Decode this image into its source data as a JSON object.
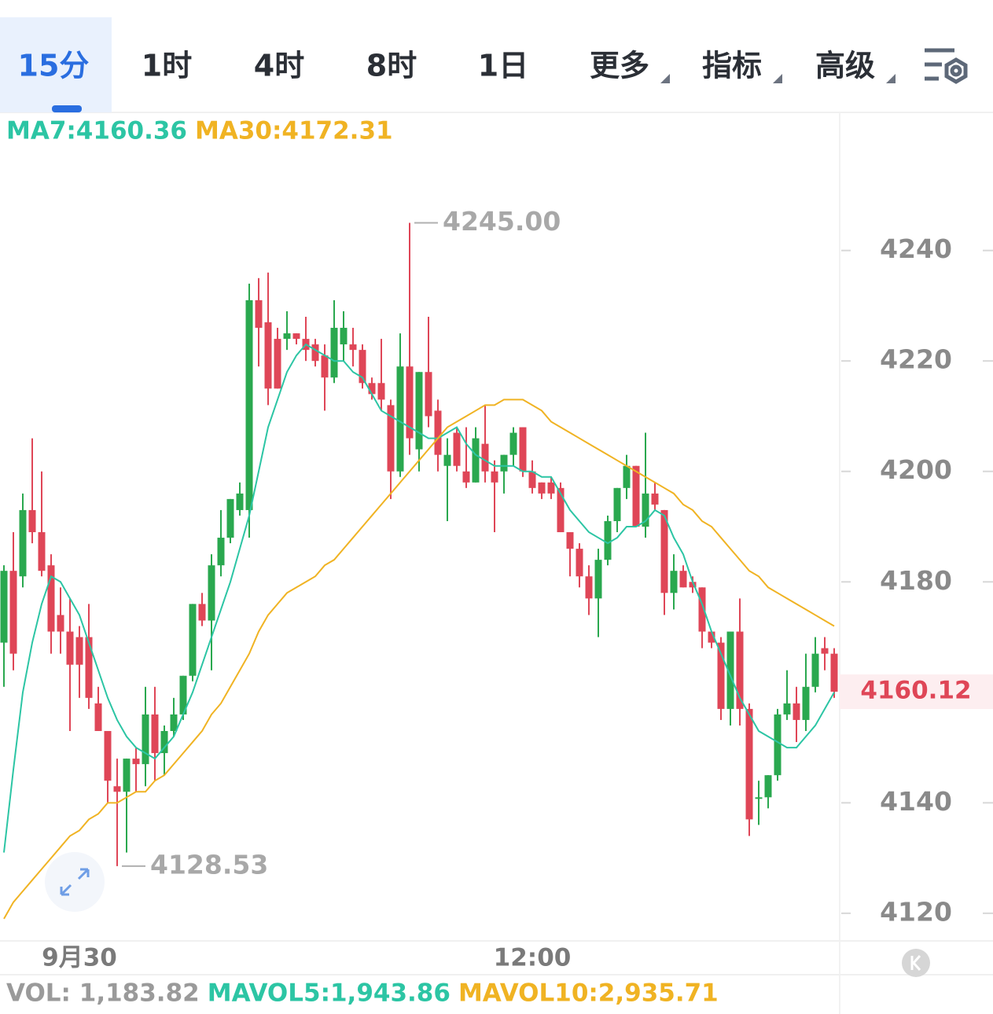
{
  "tabs": {
    "items": [
      "15分",
      "1时",
      "4时",
      "8时",
      "1日"
    ],
    "active": 0,
    "menus": [
      "更多",
      "指标",
      "高级"
    ]
  },
  "chart_data": {
    "type": "candlestick",
    "categories": [
      null,
      null,
      null,
      null,
      null,
      null,
      null,
      null,
      "9月30",
      null,
      null,
      null,
      null,
      null,
      null,
      null,
      null,
      null,
      null,
      null,
      null,
      null,
      null,
      null,
      null,
      null,
      null,
      null,
      null,
      null,
      null,
      null,
      null,
      null,
      null,
      null,
      null,
      null,
      null,
      null,
      null,
      null,
      null,
      null,
      null,
      null,
      null,
      null,
      null,
      null,
      null,
      null,
      null,
      null,
      null,
      null,
      "12:00",
      null,
      null,
      null,
      null,
      null,
      null,
      null,
      null,
      null,
      null,
      null,
      null,
      null,
      null,
      null,
      null,
      null,
      null,
      null,
      null,
      null,
      null,
      null,
      null,
      null,
      null,
      null,
      null,
      null,
      null,
      null,
      null
    ],
    "open": [
      4169,
      4182,
      4181,
      4193,
      4189,
      4183,
      4174,
      4171,
      4170,
      4170,
      4158,
      4153,
      4143,
      4142,
      4148,
      4147,
      4156,
      4149,
      4153,
      4156,
      4163,
      4176,
      4173,
      4183,
      4188,
      4193,
      4193,
      4231,
      4227,
      4224,
      4224,
      4225,
      4224,
      4223,
      4221,
      4217,
      4223,
      4223,
      4222,
      4216,
      4216,
      4212,
      4200,
      4219,
      4204,
      4218,
      4211,
      4201,
      4207,
      4200,
      4198,
      4205,
      4200,
      4200,
      4203,
      4208,
      4200,
      4198,
      4198,
      4197,
      4189,
      4186,
      4181,
      4177,
      4184,
      4191,
      4197,
      4201,
      4190,
      4196,
      4193,
      4178,
      4182,
      4180,
      4179,
      4171,
      4169,
      4157,
      4171,
      4157,
      4141,
      4141,
      4145,
      4156,
      4158,
      4155,
      4161,
      4168,
      4167
    ],
    "high": [
      4183,
      4189,
      4196,
      4206,
      4200,
      4185,
      4179,
      4177,
      4172,
      4176,
      4161,
      4153,
      4148,
      4148,
      4150,
      4161,
      4161,
      4154,
      4159,
      4163,
      4176,
      4178,
      4185,
      4193,
      4195,
      4198,
      4234,
      4235,
      4236,
      4226,
      4229,
      4225,
      4228,
      4224,
      4223,
      4231,
      4229,
      4226,
      4223,
      4217,
      4224,
      4213,
      4225,
      4245,
      4218,
      4228,
      4213,
      4206,
      4208,
      4208,
      4208,
      4212,
      4202,
      4203,
      4208,
      4208,
      4202,
      4198,
      4199,
      4198,
      4189,
      4187,
      4183,
      4186,
      4192,
      4197,
      4203,
      4201,
      4207,
      4198,
      4193,
      4185,
      4183,
      4181,
      4179,
      4171,
      4170,
      4171,
      4177,
      4158,
      4144,
      4145,
      4157,
      4164,
      4161,
      4167,
      4170,
      4170,
      4168
    ],
    "low": [
      4161,
      4164,
      4179,
      4187,
      4181,
      4167,
      4167,
      4153,
      4159,
      4157,
      4153,
      4140,
      4128.53,
      4131,
      4142,
      4143,
      4144,
      4145,
      4152,
      4155,
      4162,
      4172,
      4164,
      4181,
      4187,
      4192,
      4188,
      4219,
      4212,
      4215,
      4222,
      4223,
      4220,
      4219,
      4211,
      4216,
      4220,
      4219,
      4215,
      4213,
      4211,
      4195,
      4199,
      4203,
      4200,
      4208,
      4200,
      4191,
      4200,
      4197,
      4198,
      4198,
      4189,
      4196,
      4201,
      4199,
      4196,
      4195,
      4195,
      4189,
      4181,
      4179,
      4174,
      4170,
      4183,
      4189,
      4195,
      4190,
      4188,
      4193,
      4174,
      4175,
      4179,
      4178,
      4168,
      4168,
      4155,
      4154,
      4154,
      4134,
      4136,
      4139,
      4144,
      4155,
      4151,
      4153,
      4160,
      4164,
      4159
    ],
    "close": [
      4182,
      4167,
      4193,
      4189,
      4182,
      4171,
      4171,
      4165,
      4165,
      4159,
      4153,
      4144,
      4142,
      4148,
      4147,
      4156,
      4149,
      4153,
      4156,
      4163,
      4176,
      4173,
      4183,
      4188,
      4195,
      4196,
      4231,
      4226,
      4215,
      4215,
      4225,
      4224,
      4222,
      4220,
      4217,
      4226,
      4226,
      4222,
      4216,
      4214,
      4213,
      4200,
      4219,
      4206,
      4218,
      4210,
      4203,
      4203,
      4201,
      4198,
      4206,
      4200,
      4198,
      4203,
      4207,
      4200,
      4197,
      4196,
      4196,
      4189,
      4186,
      4181,
      4177,
      4184,
      4191,
      4197,
      4201,
      4190,
      4196,
      4194,
      4178,
      4182,
      4179,
      4179,
      4171,
      4169,
      4157,
      4171,
      4157,
      4137,
      4141,
      4145,
      4156,
      4158,
      4155,
      4161,
      4167,
      4167,
      4160.12
    ],
    "up_color": "#2aa84f",
    "down_color": "#df4657",
    "lines": [
      {
        "label": "MA7:4160.36",
        "color": "#2cc5a4",
        "values": [
          4131,
          4146,
          4160,
          4169,
          4176,
          4181,
          4180,
          4177,
          4174,
          4169,
          4164,
          4159,
          4155,
          4152,
          4150,
          4149,
          4148,
          4150,
          4152,
          4156,
          4160,
          4165,
          4170,
          4175,
          4180,
          4186,
          4192,
          4200,
          4208,
          4213,
          4218,
          4221,
          4223,
          4222,
          4221,
          4220,
          4220,
          4218,
          4217,
          4214,
          4211,
          4210,
          4209,
          4208,
          4207,
          4206,
          4206,
          4207,
          4208,
          4205,
          4203,
          4202,
          4201,
          4201,
          4201,
          4200,
          4200,
          4199,
          4199,
          4196,
          4193,
          4191,
          4189,
          4188,
          4187,
          4188,
          4190,
          4190,
          4191,
          4193,
          4192,
          4188,
          4185,
          4180,
          4176,
          4171,
          4167,
          4163,
          4159,
          4156,
          4153,
          4152,
          4151,
          4150,
          4150,
          4152,
          4154,
          4157,
          4160
        ]
      },
      {
        "label": "MA30:4172.31",
        "color": "#f0b323",
        "values": [
          4119,
          4122,
          4124,
          4126,
          4128,
          4130,
          4132,
          4134,
          4135,
          4137,
          4138,
          4140,
          4140,
          4141,
          4142,
          4142,
          4144,
          4145,
          4147,
          4149,
          4151,
          4153,
          4156,
          4158,
          4161,
          4164,
          4167,
          4171,
          4174,
          4176,
          4178,
          4179,
          4180,
          4181,
          4183,
          4184,
          4186,
          4188,
          4190,
          4192,
          4194,
          4196,
          4198,
          4200,
          4202,
          4204,
          4206,
          4208,
          4209,
          4210,
          4211,
          4212,
          4212,
          4213,
          4213,
          4213,
          4212,
          4211,
          4209,
          4208,
          4207,
          4206,
          4205,
          4204,
          4203,
          4202,
          4201,
          4200,
          4199,
          4198,
          4197,
          4196,
          4194,
          4193,
          4191,
          4190,
          4188,
          4186,
          4184,
          4182,
          4181,
          4179,
          4178,
          4177,
          4176,
          4175,
          4174,
          4173,
          4172
        ]
      }
    ],
    "ylim": [
      4115,
      4265
    ],
    "yticks": [
      4120,
      4140,
      4160,
      4180,
      4200,
      4220,
      4240
    ],
    "annotations": [
      {
        "index": 43,
        "value": 4245,
        "label": "4245.00"
      },
      {
        "index": 12,
        "value": 4128.53,
        "label": "4128.53"
      }
    ],
    "last_price": {
      "value": 4160.12,
      "label": "4160.12"
    },
    "vol_legend": [
      {
        "label": "VOL: 1,183.82",
        "color": "#9a9a9a"
      },
      {
        "label": "MAVOL5:1,943.86",
        "color": "#2cc5a4"
      },
      {
        "label": "MAVOL10:2,935.71",
        "color": "#f0b323"
      }
    ]
  }
}
